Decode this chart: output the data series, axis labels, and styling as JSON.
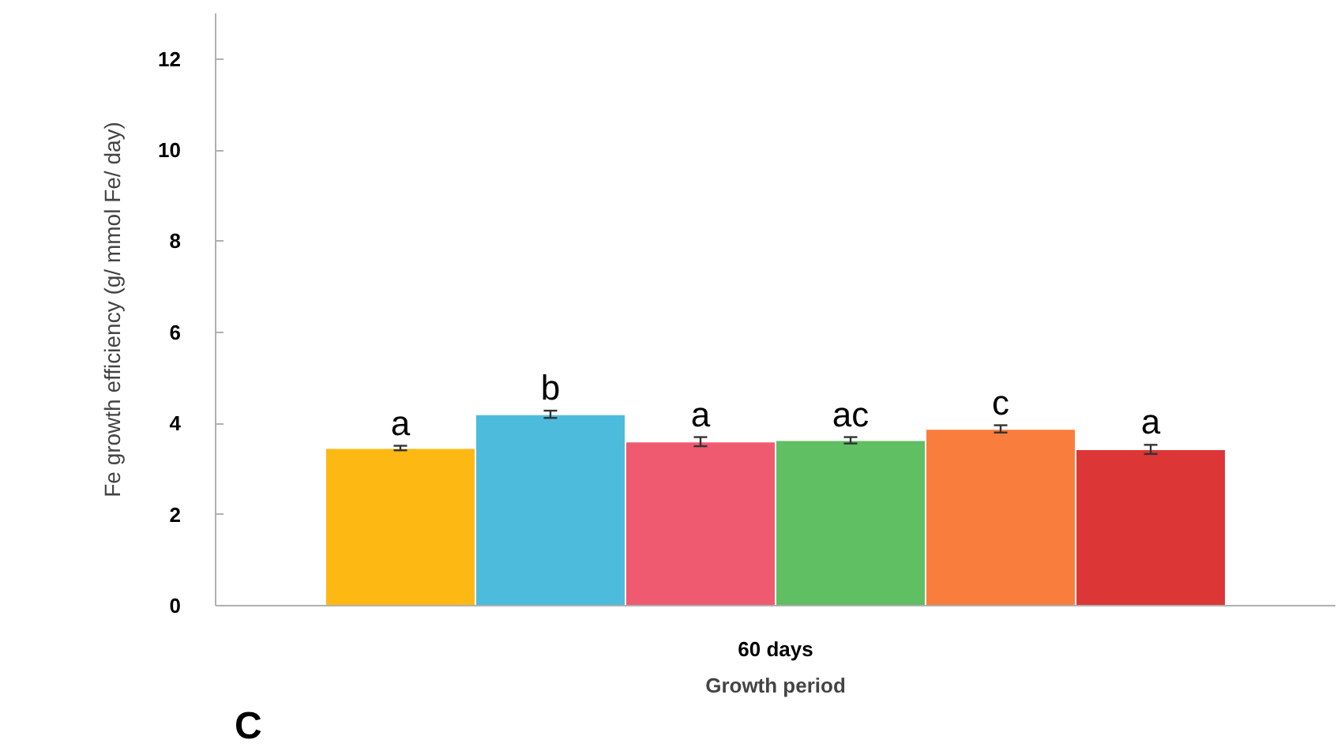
{
  "chart_data": {
    "type": "bar",
    "categories": [
      "60 days"
    ],
    "xlabel": "Growth period",
    "ylabel": "Fe growth efficiency (g/ mmol Fe/ day)",
    "series": [
      {
        "color": "#fdb813",
        "values": [
          3.46
        ],
        "errors": [
          0.05
        ]
      },
      {
        "color": "#4dbcdc",
        "values": [
          4.2
        ],
        "errors": [
          0.08
        ]
      },
      {
        "color": "#ef5a70",
        "values": [
          3.6
        ],
        "errors": [
          0.1
        ]
      },
      {
        "color": "#5fbf62",
        "values": [
          3.63
        ],
        "errors": [
          0.07
        ]
      },
      {
        "color": "#f97d3c",
        "values": [
          3.88
        ],
        "errors": [
          0.08
        ]
      },
      {
        "color": "#dc3636",
        "values": [
          3.43
        ],
        "errors": [
          0.1
        ]
      }
    ],
    "annotations": [
      "a",
      "b",
      "a",
      "ac",
      "c",
      "a",
      "C"
    ],
    "ylim": [
      0,
      13
    ],
    "yticks": [
      0,
      2,
      4,
      6,
      8,
      10,
      12
    ],
    "grid": false
  }
}
